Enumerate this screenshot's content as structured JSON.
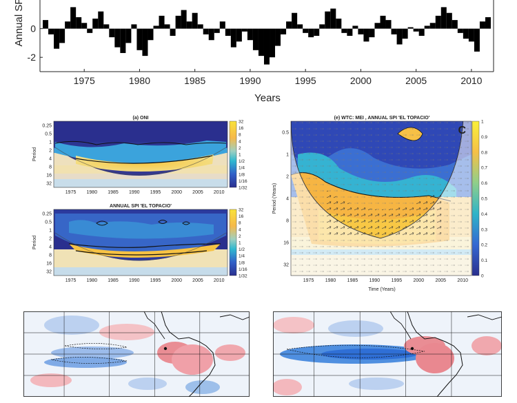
{
  "chart_data": [
    {
      "type": "bar",
      "ylabel": "Annual SPI",
      "xlabel": "Years",
      "xlim": [
        1971,
        2012
      ],
      "ylim": [
        -3,
        2
      ],
      "xticks": [
        1975,
        1980,
        1985,
        1990,
        1995,
        2000,
        2005,
        2010
      ],
      "yticks": [
        0,
        -2
      ],
      "series": [
        {
          "x": [
            1971.5,
            1972,
            1972.5,
            1973,
            1973.5,
            1974,
            1974.5,
            1975,
            1975.5,
            1976,
            1976.5,
            1977,
            1977.5,
            1978,
            1978.5,
            1979,
            1979.5,
            1980,
            1980.5,
            1981,
            1981.5,
            1982,
            1982.5,
            1983,
            1983.5,
            1984,
            1984.5,
            1985,
            1985.5,
            1986,
            1986.5,
            1987,
            1987.5,
            1988,
            1988.5,
            1989,
            1989.5,
            1990,
            1990.5,
            1991,
            1991.5,
            1992,
            1992.5,
            1993,
            1993.5,
            1994,
            1994.5,
            1995,
            1995.5,
            1996,
            1996.5,
            1997,
            1997.5,
            1998,
            1998.5,
            1999,
            1999.5,
            2000,
            2000.5,
            2001,
            2001.5,
            2002,
            2002.5,
            2003,
            2003.5,
            2004,
            2004.5,
            2005,
            2005.5,
            2006,
            2006.5,
            2007,
            2007.5,
            2008,
            2008.5,
            2009,
            2009.5,
            2010,
            2010.5,
            2011,
            2011.5
          ],
          "values": [
            0.6,
            -0.4,
            -1.4,
            -1.0,
            0.5,
            1.5,
            0.8,
            0.4,
            -0.3,
            0.7,
            1.2,
            0.3,
            -0.6,
            -1.3,
            -1.7,
            -1.0,
            0.3,
            -1.5,
            -1.9,
            -0.8,
            0.2,
            0.9,
            0.3,
            -0.5,
            0.9,
            1.3,
            0.5,
            1.1,
            0.3,
            -0.4,
            -0.8,
            -0.3,
            0.5,
            -0.5,
            -1.3,
            -0.9,
            -0.2,
            -0.8,
            -1.5,
            -1.9,
            -2.5,
            -2.0,
            -1.2,
            -0.4,
            0.5,
            1.1,
            0.3,
            -0.3,
            -0.6,
            -0.5,
            0.3,
            1.2,
            1.4,
            0.7,
            -0.3,
            -0.5,
            0.2,
            -0.4,
            -0.9,
            -0.6,
            0.4,
            0.9,
            0.6,
            -0.4,
            -1.1,
            -0.7,
            0.1,
            -0.2,
            -0.5,
            0.2,
            0.4,
            0.9,
            1.5,
            1.1,
            0.6,
            -0.3,
            -0.7,
            -0.9,
            -1.6,
            0.5,
            0.8
          ]
        }
      ]
    },
    {
      "type": "heatmap",
      "title": "(a)  ONI",
      "ylabel": "Period",
      "yticks": [
        "0.25",
        "0.5",
        "1",
        "2",
        "4",
        "8",
        "16",
        "32"
      ],
      "xticks": [
        1975,
        1980,
        1985,
        1990,
        1995,
        2000,
        2005,
        2010
      ],
      "colorbar": [
        "32",
        "16",
        "8",
        "4",
        "2",
        "1",
        "1/2",
        "1/4",
        "1/8",
        "1/16",
        "1/32"
      ]
    },
    {
      "type": "heatmap",
      "title": "ANNUAL SPI 'EL TOPACIO'",
      "ylabel": "Period",
      "yticks": [
        "0.25",
        "0.5",
        "1",
        "2",
        "4",
        "8",
        "16",
        "32"
      ],
      "xticks": [
        1975,
        1980,
        1985,
        1990,
        1995,
        2000,
        2005,
        2010
      ],
      "colorbar": [
        "32",
        "16",
        "8",
        "4",
        "2",
        "1",
        "1/2",
        "1/4",
        "1/8",
        "1/16",
        "1/32"
      ]
    },
    {
      "type": "heatmap",
      "title": "(e) WTC: MEI , ANNUAL SPI 'EL TOPACIO'",
      "ylabel": "Period (Years)",
      "xlabel": "Time (Years)",
      "yticks": [
        "0.5",
        "1",
        "2",
        "4",
        "8",
        "16",
        "32"
      ],
      "xticks": [
        1975,
        1980,
        1985,
        1990,
        1995,
        2000,
        2005,
        2010
      ],
      "colorbar": [
        "1",
        "0.9",
        "0.8",
        "0.7",
        "0.6",
        "0.5",
        "0.4",
        "0.3",
        "0.2",
        "0.1",
        "0"
      ],
      "panel_letter": "C"
    },
    {
      "type": "heatmap",
      "description_type": "map"
    },
    {
      "type": "heatmap",
      "description_type": "map"
    }
  ],
  "colors": {
    "bar": "#000000",
    "warm": "#e8575f",
    "cool": "#3b7ddd",
    "yellow": "#f8d83a",
    "navy": "#2a2f8e"
  }
}
